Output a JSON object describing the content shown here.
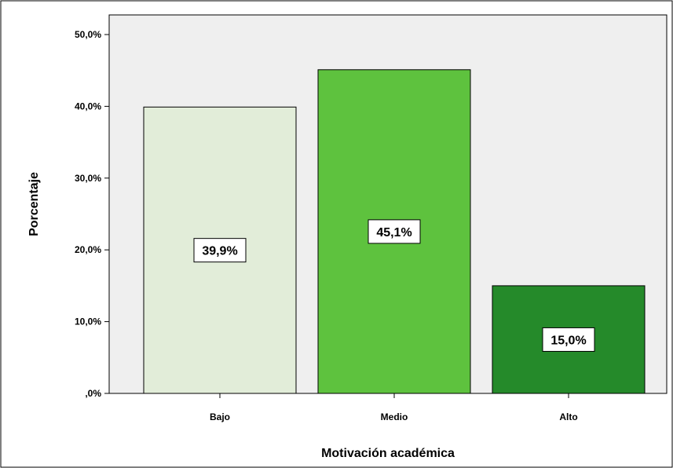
{
  "chart_data": {
    "type": "bar",
    "title": "",
    "xlabel": "Motivación académica",
    "ylabel": "Porcentaje",
    "categories": [
      "Bajo",
      "Medio",
      "Alto"
    ],
    "values": [
      39.9,
      45.1,
      15.0
    ],
    "data_labels": [
      "39,9%",
      "45,1%",
      "15,0%"
    ],
    "bar_colors": [
      "#e2edd9",
      "#5ec23e",
      "#258a2a"
    ],
    "ylim": [
      0,
      50
    ],
    "yticks": [
      0,
      10,
      20,
      30,
      40,
      50
    ],
    "ytick_labels": [
      ",0%",
      "10,0%",
      "20,0%",
      "30,0%",
      "40,0%",
      "50,0%"
    ],
    "grid": false,
    "legend": "none",
    "plot_background": "#efefef"
  }
}
